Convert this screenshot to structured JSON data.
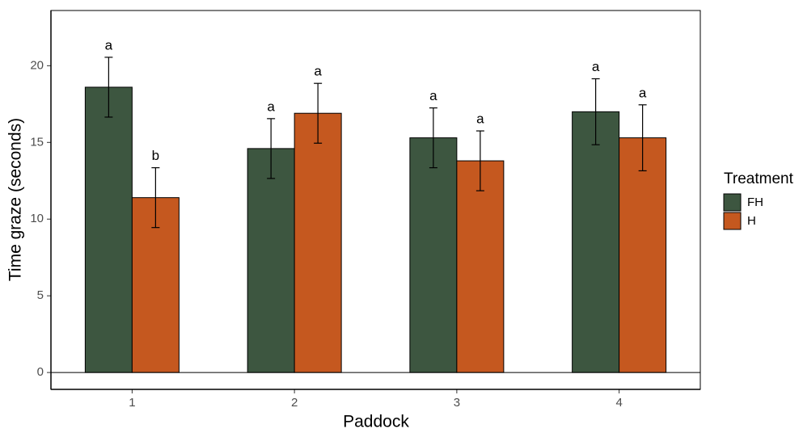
{
  "chart_data": {
    "type": "bar",
    "x_label": "Paddock",
    "y_label": "Time graze (seconds)",
    "categories": [
      "1",
      "2",
      "3",
      "4"
    ],
    "legend_title": "Treatment",
    "legend": "right",
    "ylim": [
      -1.1,
      23.6
    ],
    "yticks": [
      0,
      5,
      10,
      15,
      20
    ],
    "hline": 0,
    "series": [
      {
        "name": "FH",
        "color": "#3d5640",
        "values": [
          18.6,
          14.6,
          15.3,
          17.0
        ],
        "errors": [
          1.95,
          1.95,
          1.95,
          2.15
        ],
        "letters": [
          "a",
          "a",
          "a",
          "a"
        ]
      },
      {
        "name": "H",
        "color": "#c5581f",
        "values": [
          11.4,
          16.9,
          13.8,
          15.3
        ],
        "errors": [
          1.95,
          1.95,
          1.95,
          2.15
        ],
        "letters": [
          "b",
          "a",
          "a",
          "a"
        ]
      }
    ]
  }
}
